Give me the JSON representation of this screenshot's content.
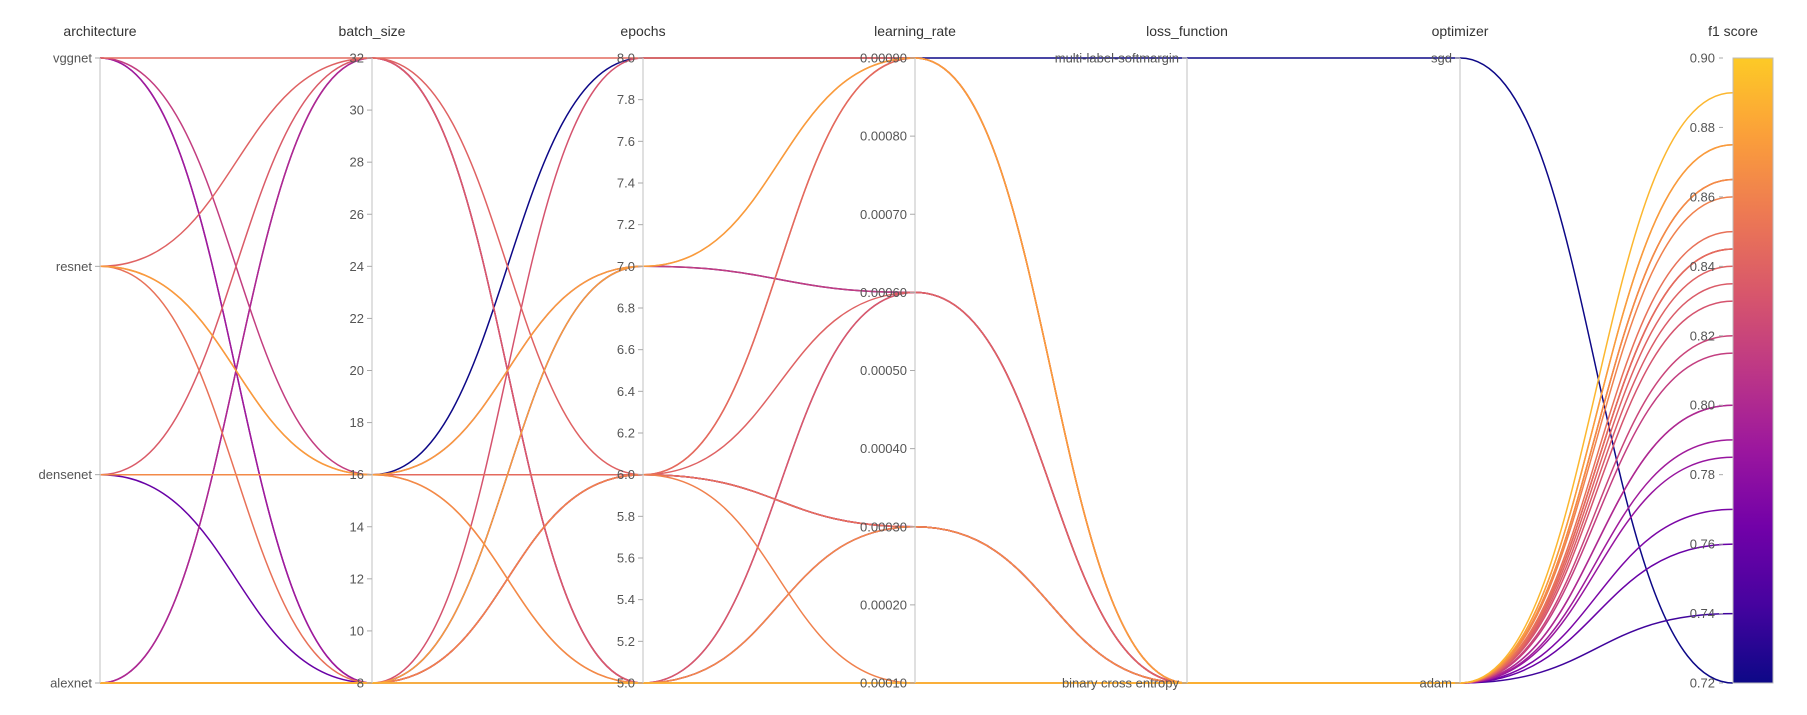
{
  "chart_data": {
    "type": "parallel_coordinates",
    "title": "",
    "color_by": "f1 score",
    "colors": {
      "colormap_stops": [
        "#0d0887",
        "#46039f",
        "#7201a8",
        "#9c179e",
        "#bd3786",
        "#d8576b",
        "#ed7953",
        "#fb9f3a",
        "#fdca26"
      ],
      "axis_line": "#cccccc",
      "text": "#333333"
    },
    "axes": [
      {
        "key": "architecture",
        "label": "architecture",
        "kind": "categorical",
        "categories": [
          "alexnet",
          "densenet",
          "resnet",
          "vggnet"
        ],
        "tick_labels": [
          "alexnet",
          "densenet",
          "resnet",
          "vggnet"
        ]
      },
      {
        "key": "batch_size",
        "label": "batch_size",
        "kind": "numeric",
        "range": [
          8,
          32
        ],
        "tick_labels": [
          "8",
          "10",
          "12",
          "14",
          "16",
          "18",
          "20",
          "22",
          "24",
          "26",
          "28",
          "30",
          "32"
        ]
      },
      {
        "key": "epochs",
        "label": "epochs",
        "kind": "numeric",
        "range": [
          5.0,
          8.0
        ],
        "tick_labels": [
          "5.0",
          "5.2",
          "5.4",
          "5.6",
          "5.8",
          "6.0",
          "6.2",
          "6.4",
          "6.6",
          "6.8",
          "7.0",
          "7.2",
          "7.4",
          "7.6",
          "7.8",
          "8.0"
        ]
      },
      {
        "key": "learning_rate",
        "label": "learning_rate",
        "kind": "numeric",
        "range": [
          0.0001,
          0.0009
        ],
        "tick_labels": [
          "0.00010",
          "0.00020",
          "0.00030",
          "0.00040",
          "0.00050",
          "0.00060",
          "0.00070",
          "0.00080",
          "0.00090"
        ]
      },
      {
        "key": "loss_function",
        "label": "loss_function",
        "kind": "categorical",
        "categories": [
          "binary cross entropy",
          "multi-label-softmargin"
        ],
        "tick_labels": [
          "binary cross entropy",
          "multi-label-softmargin"
        ]
      },
      {
        "key": "optimizer",
        "label": "optimizer",
        "kind": "categorical",
        "categories": [
          "adam",
          "sgd"
        ],
        "tick_labels": [
          "adam",
          "sgd"
        ]
      },
      {
        "key": "f1",
        "label": "f1 score",
        "kind": "numeric",
        "range": [
          0.72,
          0.9
        ],
        "tick_labels": [
          "0.72",
          "0.74",
          "0.76",
          "0.78",
          "0.80",
          "0.82",
          "0.84",
          "0.86",
          "0.88",
          "0.90"
        ]
      }
    ],
    "runs": [
      {
        "architecture": "vggnet",
        "batch_size": 32,
        "epochs": 8,
        "learning_rate": 0.0009,
        "loss_function": "binary cross entropy",
        "optimizer": "adam",
        "f1": 0.845
      },
      {
        "architecture": "vggnet",
        "batch_size": 8,
        "epochs": 6,
        "learning_rate": 0.0003,
        "loss_function": "binary cross entropy",
        "optimizer": "adam",
        "f1": 0.79
      },
      {
        "architecture": "vggnet",
        "batch_size": 16,
        "epochs": 7,
        "learning_rate": 0.0006,
        "loss_function": "binary cross entropy",
        "optimizer": "adam",
        "f1": 0.815
      },
      {
        "architecture": "vggnet",
        "batch_size": 8,
        "epochs": 6,
        "learning_rate": 0.0003,
        "loss_function": "binary cross entropy",
        "optimizer": "adam",
        "f1": 0.77
      },
      {
        "architecture": "resnet",
        "batch_size": 32,
        "epochs": 6,
        "learning_rate": 0.0006,
        "loss_function": "binary cross entropy",
        "optimizer": "adam",
        "f1": 0.84
      },
      {
        "architecture": "resnet",
        "batch_size": 16,
        "epochs": 5,
        "learning_rate": 0.0001,
        "loss_function": "binary cross entropy",
        "optimizer": "adam",
        "f1": 0.865
      },
      {
        "architecture": "resnet",
        "batch_size": 8,
        "epochs": 6,
        "learning_rate": 0.0003,
        "loss_function": "binary cross entropy",
        "optimizer": "adam",
        "f1": 0.85
      },
      {
        "architecture": "resnet",
        "batch_size": 16,
        "epochs": 7,
        "learning_rate": 0.0009,
        "loss_function": "binary cross entropy",
        "optimizer": "adam",
        "f1": 0.875
      },
      {
        "architecture": "densenet",
        "batch_size": 16,
        "epochs": 6,
        "learning_rate": 0.0009,
        "loss_function": "binary cross entropy",
        "optimizer": "adam",
        "f1": 0.845
      },
      {
        "architecture": "densenet",
        "batch_size": 16,
        "epochs": 8,
        "learning_rate": 0.0009,
        "loss_function": "multi-label-softmargin",
        "optimizer": "sgd",
        "f1": 0.72
      },
      {
        "architecture": "densenet",
        "batch_size": 16,
        "epochs": 5,
        "learning_rate": 0.0003,
        "loss_function": "binary cross entropy",
        "optimizer": "adam",
        "f1": 0.865
      },
      {
        "architecture": "densenet",
        "batch_size": 32,
        "epochs": 5,
        "learning_rate": 0.0006,
        "loss_function": "binary cross entropy",
        "optimizer": "adam",
        "f1": 0.835
      },
      {
        "architecture": "densenet",
        "batch_size": 8,
        "epochs": 6,
        "learning_rate": 0.0003,
        "loss_function": "binary cross entropy",
        "optimizer": "adam",
        "f1": 0.76
      },
      {
        "architecture": "densenet",
        "batch_size": 16,
        "epochs": 6,
        "learning_rate": 0.0003,
        "loss_function": "binary cross entropy",
        "optimizer": "adam",
        "f1": 0.82
      },
      {
        "architecture": "alexnet",
        "batch_size": 32,
        "epochs": 5,
        "learning_rate": 0.0003,
        "loss_function": "binary cross entropy",
        "optimizer": "adam",
        "f1": 0.8
      },
      {
        "architecture": "alexnet",
        "batch_size": 32,
        "epochs": 5,
        "learning_rate": 0.0006,
        "loss_function": "binary cross entropy",
        "optimizer": "adam",
        "f1": 0.785
      },
      {
        "architecture": "alexnet",
        "batch_size": 8,
        "epochs": 7,
        "learning_rate": 0.0006,
        "loss_function": "binary cross entropy",
        "optimizer": "adam",
        "f1": 0.74
      },
      {
        "architecture": "alexnet",
        "batch_size": 8,
        "epochs": 6,
        "learning_rate": 0.0009,
        "loss_function": "binary cross entropy",
        "optimizer": "adam",
        "f1": 0.845
      },
      {
        "architecture": "alexnet",
        "batch_size": 8,
        "epochs": 7,
        "learning_rate": 0.0009,
        "loss_function": "binary cross entropy",
        "optimizer": "adam",
        "f1": 0.875
      },
      {
        "architecture": "alexnet",
        "batch_size": 8,
        "epochs": 5,
        "learning_rate": 0.0001,
        "loss_function": "binary cross entropy",
        "optimizer": "adam",
        "f1": 0.865
      },
      {
        "architecture": "alexnet",
        "batch_size": 8,
        "epochs": 8,
        "learning_rate": 0.0009,
        "loss_function": "binary cross entropy",
        "optimizer": "adam",
        "f1": 0.83
      },
      {
        "architecture": "alexnet",
        "batch_size": 8,
        "epochs": 5,
        "learning_rate": 0.0003,
        "loss_function": "binary cross entropy",
        "optimizer": "adam",
        "f1": 0.8
      },
      {
        "architecture": "alexnet",
        "batch_size": 8,
        "epochs": 5,
        "learning_rate": 0.0001,
        "loss_function": "binary cross entropy",
        "optimizer": "adam",
        "f1": 0.89
      },
      {
        "architecture": "alexnet",
        "batch_size": 8,
        "epochs": 6,
        "learning_rate": 0.0001,
        "loss_function": "binary cross entropy",
        "optimizer": "adam",
        "f1": 0.86
      }
    ]
  }
}
